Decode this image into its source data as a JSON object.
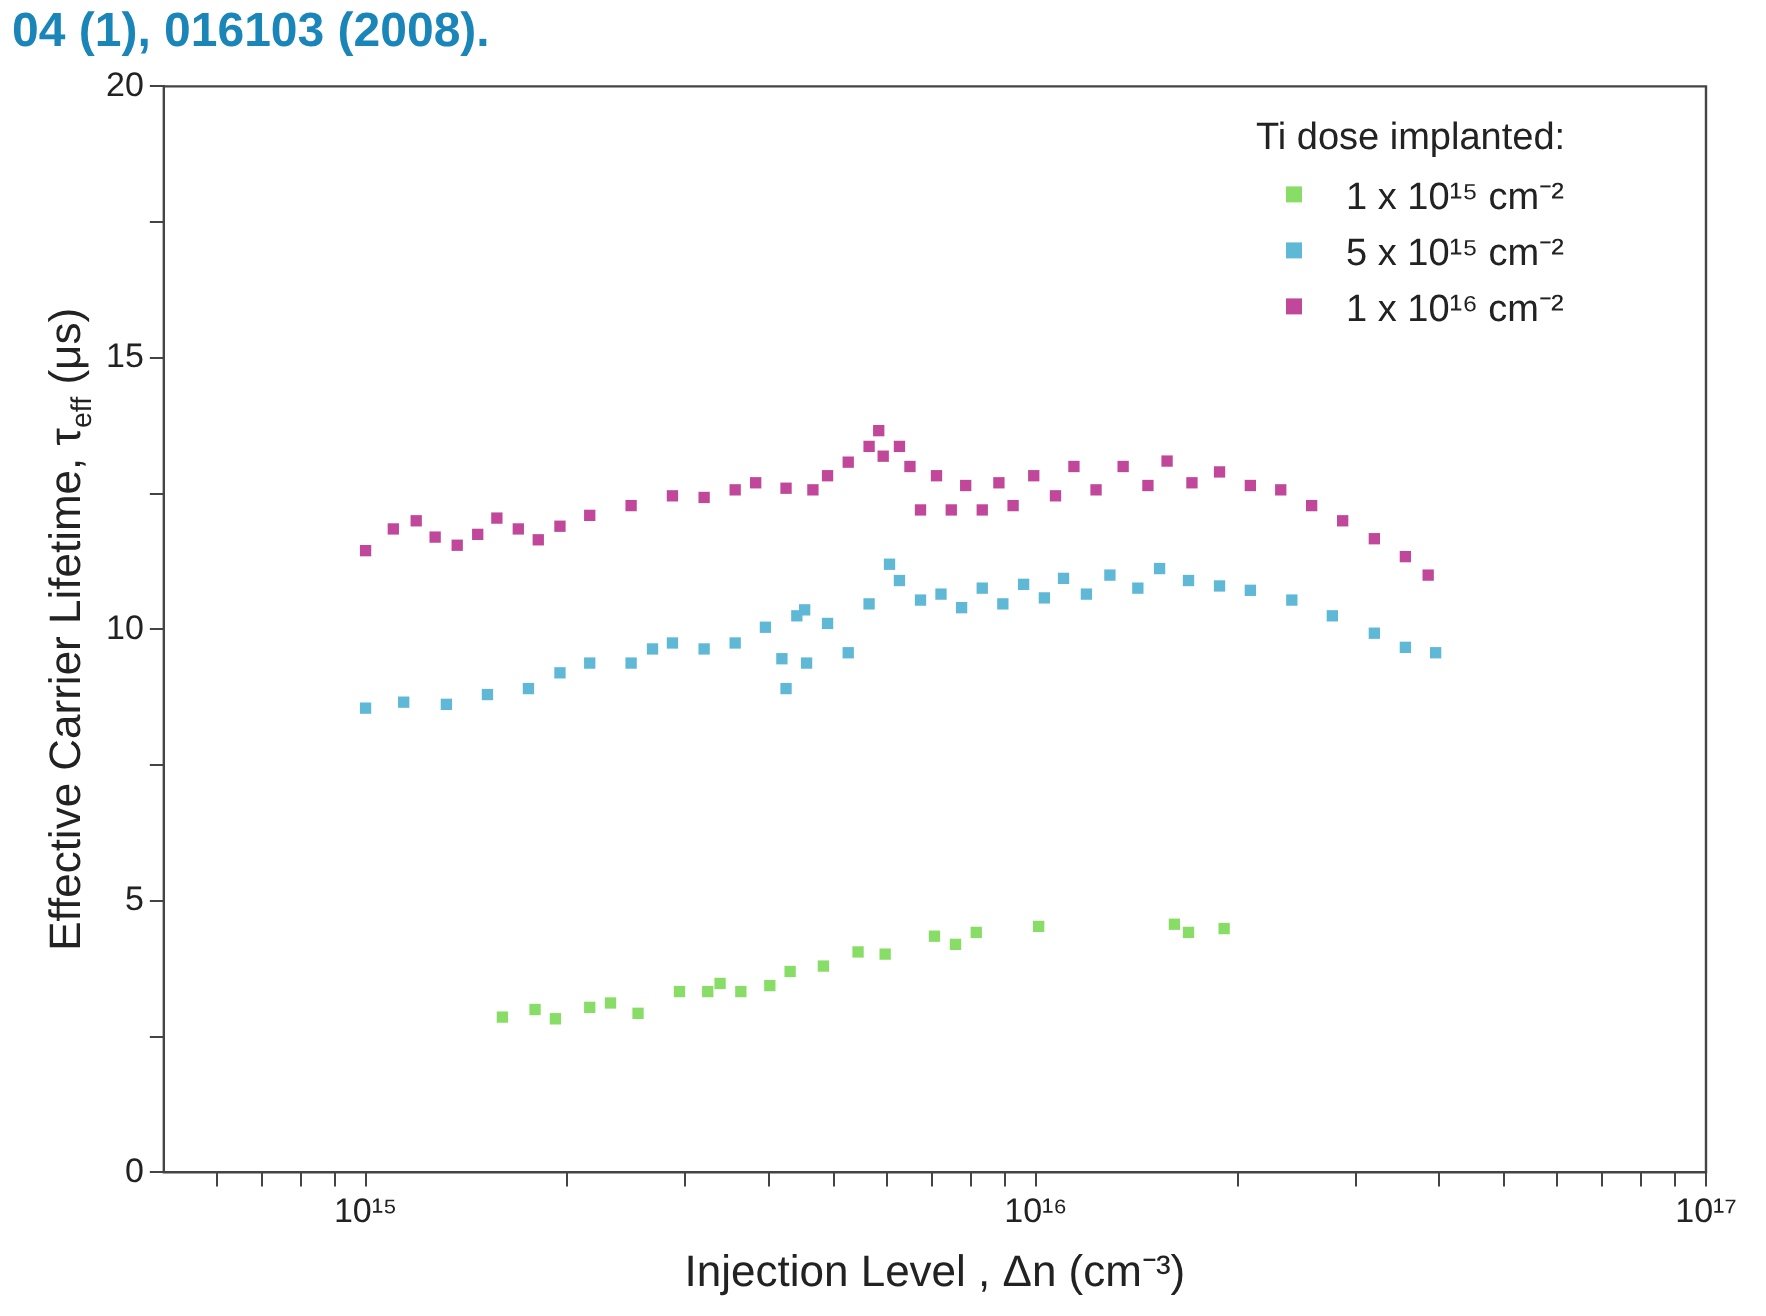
{
  "chart_data": {
    "type": "scatter",
    "xlabel": "Injection Level , Δn (cm⁻³)",
    "ylabel": "Effective Carrier Lifetime, τ$_{eff}$ (μs)",
    "legend_title": "Ti dose implanted:",
    "legend": "top right",
    "marker": "square",
    "grid": false,
    "log": "x",
    "annotations": [
      "04 (1), 016103 (2008)."
    ],
    "xlim": [
      500000000000000.0,
      1e+17
    ],
    "xticks": [
      {
        "value": 600000000000000.0,
        "label": null
      },
      {
        "value": 700000000000000.0,
        "label": null
      },
      {
        "value": 800000000000000.0,
        "label": null
      },
      {
        "value": 900000000000000.0,
        "label": null
      },
      {
        "value": 1000000000000000.0,
        "label": "10¹⁵"
      },
      {
        "value": 2000000000000000.0,
        "label": null
      },
      {
        "value": 3000000000000000.0,
        "label": null
      },
      {
        "value": 4000000000000000.0,
        "label": null
      },
      {
        "value": 5000000000000000.0,
        "label": null
      },
      {
        "value": 6000000000000000.0,
        "label": null
      },
      {
        "value": 7000000000000000.0,
        "label": null
      },
      {
        "value": 8000000000000000.0,
        "label": null
      },
      {
        "value": 9000000000000000.0,
        "label": null
      },
      {
        "value": 1e+16,
        "label": "10¹⁶"
      },
      {
        "value": 2e+16,
        "label": null
      },
      {
        "value": 3e+16,
        "label": null
      },
      {
        "value": 4e+16,
        "label": null
      },
      {
        "value": 5e+16,
        "label": null
      },
      {
        "value": 6e+16,
        "label": null
      },
      {
        "value": 7e+16,
        "label": null
      },
      {
        "value": 8e+16,
        "label": null
      },
      {
        "value": 9e+16,
        "label": null
      },
      {
        "value": 1e+17,
        "label": "10¹⁷"
      }
    ],
    "ylim": [
      0,
      20
    ],
    "yticks": [
      0,
      {
        "value": 2.5,
        "label": null
      },
      5,
      {
        "value": 7.5,
        "label": null
      },
      10,
      {
        "value": 12.5,
        "label": null
      },
      15,
      {
        "value": 17.5,
        "label": null
      },
      20
    ],
    "series": [
      {
        "name": "1 x 10¹⁵ cm⁻²",
        "color": "#88dd66",
        "x": [
          1600000000000000.0,
          1790000000000000.0,
          1920000000000000.0,
          2160000000000000.0,
          2320000000000000.0,
          2550000000000000.0,
          2940000000000000.0,
          3240000000000000.0,
          3380000000000000.0,
          3630000000000000.0,
          4010000000000000.0,
          4300000000000000.0,
          4820000000000000.0,
          5430000000000000.0,
          5960000000000000.0,
          7060000000000000.0,
          7590000000000000.0,
          8150000000000000.0,
          1.01e+16,
          1.61e+16,
          1.69e+16,
          1.91e+16
        ],
        "values": [
          2.86,
          3.0,
          2.83,
          3.04,
          3.12,
          2.93,
          3.33,
          3.33,
          3.48,
          3.33,
          3.44,
          3.7,
          3.8,
          4.06,
          4.02,
          4.35,
          4.2,
          4.42,
          4.53,
          4.57,
          4.42,
          4.49
        ]
      },
      {
        "name": "5 x 10¹⁵ cm⁻²",
        "color": "#5fb8d6",
        "x": [
          1000000000000000.0,
          1140000000000000.0,
          1320000000000000.0,
          1520000000000000.0,
          1750000000000000.0,
          1950000000000000.0,
          2160000000000000.0,
          2490000000000000.0,
          2680000000000000.0,
          2870000000000000.0,
          3200000000000000.0,
          3560000000000000.0,
          3950000000000000.0,
          4400000000000000.0,
          4520000000000000.0,
          4180000000000000.0,
          4240000000000000.0,
          4550000000000000.0,
          4890000000000000.0,
          5250000000000000.0,
          5640000000000000.0,
          6050000000000000.0,
          6260000000000000.0,
          6730000000000000.0,
          7220000000000000.0,
          7750000000000000.0,
          8320000000000000.0,
          8930000000000000.0,
          9590000000000000.0,
          1.03e+16,
          1.1e+16,
          1.19e+16,
          1.29e+16,
          1.42e+16,
          1.53e+16,
          1.69e+16,
          1.88e+16,
          2.09e+16,
          2.41e+16,
          2.77e+16,
          3.2e+16,
          3.56e+16,
          3.95e+16
        ],
        "values": [
          8.55,
          8.66,
          8.62,
          8.8,
          8.91,
          9.2,
          9.38,
          9.38,
          9.64,
          9.75,
          9.64,
          9.75,
          10.04,
          10.25,
          10.36,
          9.46,
          8.91,
          9.38,
          10.11,
          9.57,
          10.47,
          11.2,
          10.9,
          10.54,
          10.65,
          10.4,
          10.76,
          10.47,
          10.83,
          10.58,
          10.94,
          10.65,
          11.0,
          10.76,
          11.12,
          10.9,
          10.8,
          10.72,
          10.54,
          10.25,
          9.93,
          9.67,
          9.57
        ]
      },
      {
        "name": "1 x 10¹⁶ cm⁻²",
        "color": "#c0479a",
        "x": [
          1000000000000000.0,
          1100000000000000.0,
          1190000000000000.0,
          1270000000000000.0,
          1370000000000000.0,
          1470000000000000.0,
          1570000000000000.0,
          1690000000000000.0,
          1810000000000000.0,
          1950000000000000.0,
          2160000000000000.0,
          2490000000000000.0,
          2870000000000000.0,
          3200000000000000.0,
          3560000000000000.0,
          3820000000000000.0,
          4240000000000000.0,
          4650000000000000.0,
          4890000000000000.0,
          5250000000000000.0,
          5640000000000000.0,
          5830000000000000.0,
          5920000000000000.0,
          6260000000000000.0,
          6490000000000000.0,
          6730000000000000.0,
          7110000000000000.0,
          7480000000000000.0,
          7860000000000000.0,
          8320000000000000.0,
          8810000000000000.0,
          9250000000000000.0,
          9930000000000000.0,
          1.07e+16,
          1.14e+16,
          1.23e+16,
          1.35e+16,
          1.47e+16,
          1.57e+16,
          1.71e+16,
          1.88e+16,
          2.09e+16,
          2.32e+16,
          2.58e+16,
          2.87e+16,
          3.2e+16,
          3.56e+16,
          3.85e+16
        ],
        "values": [
          11.45,
          11.85,
          12.0,
          11.7,
          11.55,
          11.75,
          12.05,
          11.85,
          11.65,
          11.9,
          12.1,
          12.28,
          12.46,
          12.43,
          12.57,
          12.7,
          12.6,
          12.57,
          12.83,
          13.08,
          13.37,
          13.66,
          13.19,
          13.37,
          13.0,
          12.2,
          12.83,
          12.2,
          12.65,
          12.2,
          12.7,
          12.28,
          12.83,
          12.46,
          13.0,
          12.57,
          13.0,
          12.65,
          13.1,
          12.7,
          12.9,
          12.65,
          12.57,
          12.28,
          12.0,
          11.67,
          11.34,
          11.0
        ]
      }
    ]
  }
}
